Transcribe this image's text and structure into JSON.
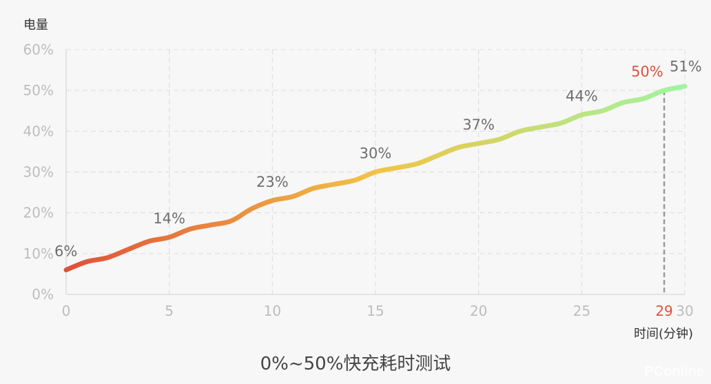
{
  "caption": "0%~50%快充耗时测试",
  "watermark": "PConline",
  "chart_data": {
    "type": "line",
    "ylabel": "电量",
    "xlabel": "时间(分钟)",
    "xlim": [
      0,
      30
    ],
    "ylim": [
      0,
      60
    ],
    "x_ticks": [
      0,
      5,
      10,
      15,
      20,
      25,
      30
    ],
    "y_ticks": [
      "0%",
      "10%",
      "20%",
      "30%",
      "40%",
      "50%",
      "60%"
    ],
    "grid": true,
    "line_gradient": [
      "#e0503a",
      "#f2c346",
      "#9ff5a0"
    ],
    "series": [
      {
        "x": [
          0,
          1,
          2,
          3,
          4,
          5,
          6,
          7,
          8,
          9,
          10,
          11,
          12,
          13,
          14,
          15,
          16,
          17,
          18,
          19,
          20,
          21,
          22,
          23,
          24,
          25,
          26,
          27,
          28,
          29,
          30
        ],
        "values": [
          6,
          8,
          9,
          11,
          13,
          14,
          16,
          17,
          18,
          21,
          23,
          24,
          26,
          27,
          28,
          30,
          31,
          32,
          34,
          36,
          37,
          38,
          40,
          41,
          42,
          44,
          45,
          47,
          48,
          50,
          51
        ]
      }
    ],
    "point_labels": [
      {
        "x": 0,
        "y": 6,
        "text": "6%"
      },
      {
        "x": 5,
        "y": 14,
        "text": "14%"
      },
      {
        "x": 10,
        "y": 23,
        "text": "23%"
      },
      {
        "x": 15,
        "y": 30,
        "text": "30%"
      },
      {
        "x": 20,
        "y": 37,
        "text": "37%"
      },
      {
        "x": 25,
        "y": 44,
        "text": "44%"
      },
      {
        "x": 29,
        "y": 50,
        "text": "50%",
        "highlight": true
      },
      {
        "x": 30,
        "y": 51,
        "text": "51%"
      }
    ],
    "marker": {
      "x": 29,
      "label": "29",
      "color": "#e0503a"
    }
  }
}
